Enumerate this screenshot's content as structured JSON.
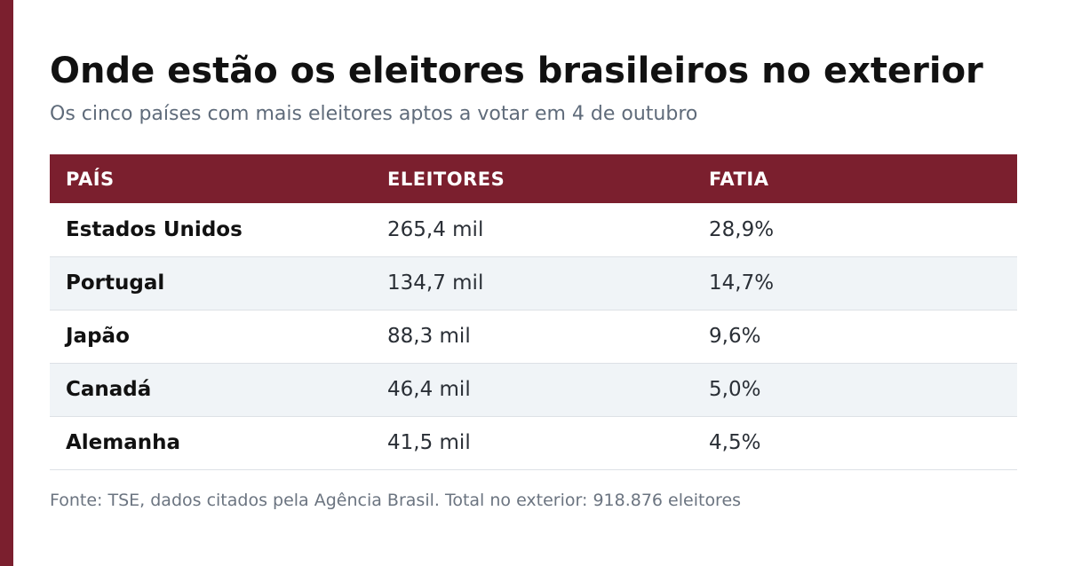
{
  "title": "Onde estão os eleitores brasileiros no exterior",
  "subtitle": "Os cinco países com mais eleitores aptos a votar em 4 de outubro",
  "source": "Fonte: TSE, dados citados pela Agência Brasil. Total no exterior: 918.876 eleitores",
  "colors": {
    "accent": "#7b1f2e",
    "alt_row": "#f0f4f7"
  },
  "chart_data": {
    "type": "table",
    "title": "Onde estão os eleitores brasileiros no exterior",
    "subtitle": "Os cinco países com mais eleitores aptos a votar em 4 de outubro",
    "columns": [
      "PAÍS",
      "ELEITORES",
      "FATIA"
    ],
    "rows": [
      [
        "Estados Unidos",
        "265,4 mil",
        "28,9%"
      ],
      [
        "Portugal",
        "134,7 mil",
        "14,7%"
      ],
      [
        "Japão",
        "88,3 mil",
        "9,6%"
      ],
      [
        "Canadá",
        "46,4 mil",
        "5,0%"
      ],
      [
        "Alemanha",
        "41,5 mil",
        "4,5%"
      ]
    ]
  }
}
